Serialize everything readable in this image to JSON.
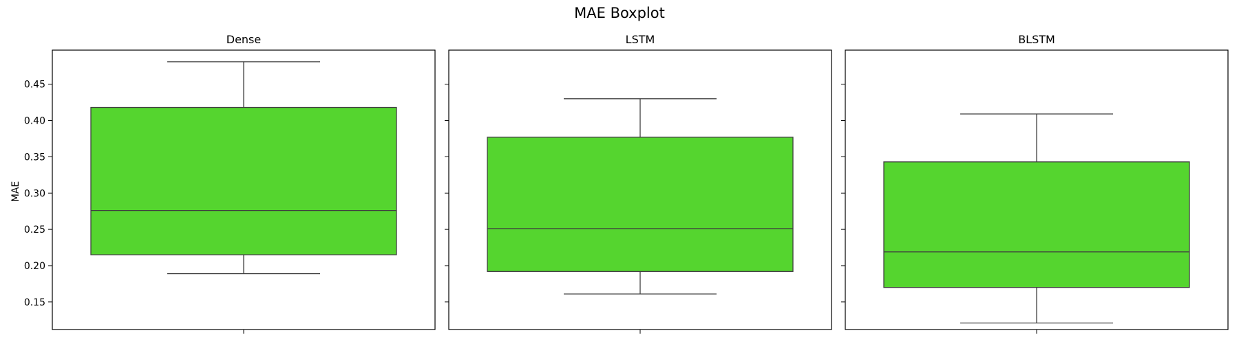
{
  "chart_data": {
    "type": "box",
    "title": "MAE Boxplot",
    "ylabel": "MAE",
    "ylim": [
      0.112,
      0.497
    ],
    "yticks": [
      0.15,
      0.2,
      0.25,
      0.3,
      0.35,
      0.4,
      0.45
    ],
    "ytick_labels": [
      "0.15",
      "0.20",
      "0.25",
      "0.30",
      "0.35",
      "0.40",
      "0.45"
    ],
    "box_color": "#55d52f",
    "edge_color": "#3f3f3f",
    "shared_y": true,
    "panels": [
      {
        "title": "Dense",
        "whisker_low": 0.189,
        "q1": 0.215,
        "median": 0.276,
        "q3": 0.418,
        "whisker_high": 0.481
      },
      {
        "title": "LSTM",
        "whisker_low": 0.161,
        "q1": 0.192,
        "median": 0.251,
        "q3": 0.377,
        "whisker_high": 0.43
      },
      {
        "title": "BLSTM",
        "whisker_low": 0.121,
        "q1": 0.17,
        "median": 0.219,
        "q3": 0.343,
        "whisker_high": 0.409
      }
    ]
  }
}
